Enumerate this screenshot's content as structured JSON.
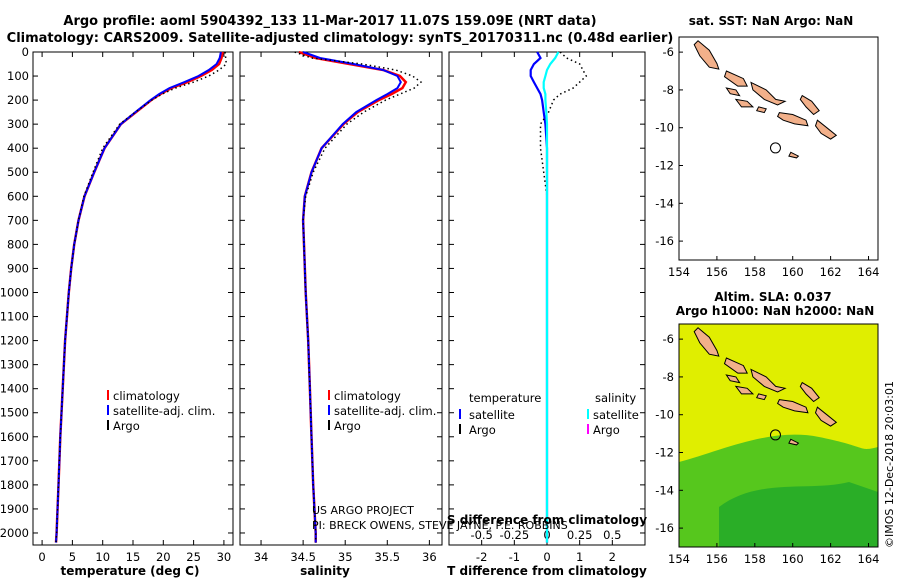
{
  "title_line1": "Argo profile: aoml 5904392_133 11-Mar-2017 11.07S 159.09E (NRT data)",
  "title_line2": "Climatology: CARS2009. Satellite-adjusted climatology: synTS_20170311.nc (0.48d earlier)",
  "colors": {
    "climatology": "#ff0000",
    "satellite": "#0000ff",
    "argo": "#000000",
    "sat_salinity": "#00ffff",
    "argo_salinity": "#ff00ff",
    "land": "#f2b08a",
    "sla_field": "#e0ee00",
    "sla_low": "#3dbf22"
  },
  "depth_axis": {
    "ylim": [
      0,
      2050
    ],
    "ticks": [
      0,
      100,
      200,
      300,
      400,
      500,
      600,
      700,
      800,
      900,
      1000,
      1100,
      1200,
      1300,
      1400,
      1500,
      1600,
      1700,
      1800,
      1900,
      2000
    ]
  },
  "chart_data": [
    {
      "type": "line",
      "id": "temperature",
      "xlabel": "temperature (deg C)",
      "xlim": [
        -1.5,
        31.5
      ],
      "xticks": [
        0,
        5,
        10,
        15,
        20,
        25,
        30
      ],
      "legend": [
        "climatology",
        "satellite-adj. clim.",
        "Argo"
      ],
      "depth": [
        0,
        25,
        50,
        75,
        100,
        125,
        150,
        175,
        200,
        250,
        300,
        400,
        500,
        600,
        700,
        800,
        900,
        1000,
        1200,
        1400,
        1600,
        1800,
        2000,
        2040
      ],
      "series": [
        {
          "name": "climatology",
          "values": [
            29.8,
            29.6,
            29.2,
            28.0,
            26.2,
            24.0,
            21.3,
            19.5,
            18.0,
            15.5,
            13.0,
            10.3,
            8.6,
            7.0,
            6.0,
            5.3,
            4.8,
            4.4,
            3.8,
            3.4,
            3.0,
            2.7,
            2.4,
            2.3
          ]
        },
        {
          "name": "satellite-adj. clim.",
          "values": [
            29.5,
            29.3,
            28.8,
            27.5,
            25.8,
            23.5,
            21.0,
            19.3,
            17.9,
            15.4,
            13.0,
            10.3,
            8.6,
            7.0,
            6.0,
            5.3,
            4.8,
            4.4,
            3.8,
            3.4,
            3.0,
            2.7,
            2.4,
            2.3
          ]
        },
        {
          "name": "Argo",
          "values": [
            30.2,
            30.3,
            30.4,
            29.2,
            27.5,
            25.0,
            22.0,
            19.8,
            18.1,
            15.4,
            12.8,
            10.0,
            8.4,
            6.9,
            6.0,
            5.3,
            4.8,
            4.4,
            3.8,
            3.4,
            3.0,
            2.7,
            2.4,
            2.3
          ]
        }
      ]
    },
    {
      "type": "line",
      "id": "salinity",
      "xlabel": "salinity",
      "xlim": [
        33.75,
        36.15
      ],
      "xticks": [
        34,
        34.5,
        35,
        35.5,
        36
      ],
      "legend": [
        "climatology",
        "satellite-adj. clim.",
        "Argo"
      ],
      "depth": [
        0,
        25,
        50,
        75,
        100,
        125,
        150,
        175,
        200,
        250,
        300,
        400,
        500,
        600,
        700,
        800,
        1000,
        1200,
        1400,
        1600,
        1800,
        2000,
        2040
      ],
      "series": [
        {
          "name": "climatology",
          "values": [
            34.45,
            34.65,
            35.05,
            35.45,
            35.65,
            35.72,
            35.68,
            35.55,
            35.4,
            35.15,
            34.98,
            34.72,
            34.6,
            34.52,
            34.5,
            34.51,
            34.53,
            34.56,
            34.58,
            34.6,
            34.62,
            34.65,
            34.65
          ]
        },
        {
          "name": "satellite-adj. clim.",
          "values": [
            34.5,
            34.7,
            35.1,
            35.45,
            35.62,
            35.66,
            35.62,
            35.5,
            35.37,
            35.13,
            34.97,
            34.72,
            34.6,
            34.52,
            34.5,
            34.51,
            34.53,
            34.56,
            34.58,
            34.6,
            34.62,
            34.65,
            34.65
          ]
        },
        {
          "name": "Argo",
          "values": [
            34.4,
            34.6,
            35.2,
            35.6,
            35.8,
            35.9,
            35.82,
            35.65,
            35.48,
            35.22,
            35.02,
            34.76,
            34.62,
            34.53,
            34.5,
            34.51,
            34.53,
            34.56,
            34.58,
            34.6,
            34.62,
            34.65,
            34.65
          ]
        }
      ],
      "credit_line1": "US ARGO PROJECT",
      "credit_line2": "PI: BRECK OWENS, STEVE JAYNE, P.E. ROBBINS"
    },
    {
      "type": "line",
      "id": "difference",
      "xlabel": "T difference from climatology",
      "xlim": [
        -3,
        3
      ],
      "xticks": [
        -2,
        -1,
        0,
        1,
        2
      ],
      "s_label": "S difference from climatology",
      "s_ticks": [
        {
          "label": "-0.5",
          "t": -2
        },
        {
          "label": "-0.25",
          "t": -1
        },
        {
          "label": "0",
          "t": 0
        },
        {
          "label": "0.25",
          "t": 1
        },
        {
          "label": "0.5",
          "t": 2
        }
      ],
      "legend_left_title": "temperature",
      "legend_right_title": "salinity",
      "legend_left": [
        "satellite",
        "Argo"
      ],
      "legend_right": [
        "satellite",
        "Argo"
      ],
      "depth": [
        0,
        25,
        50,
        75,
        100,
        125,
        150,
        175,
        200,
        250,
        300,
        400,
        500,
        600,
        800,
        1000,
        1200,
        1500,
        1800,
        2040
      ],
      "series": [
        {
          "name": "temperature satellite",
          "values": [
            -0.3,
            -0.2,
            -0.4,
            -0.5,
            -0.5,
            -0.4,
            -0.3,
            -0.2,
            -0.15,
            -0.1,
            -0.05,
            0,
            0,
            0,
            0,
            0,
            0,
            0,
            0,
            0
          ]
        },
        {
          "name": "temperature Argo",
          "values": [
            0.4,
            0.6,
            1.0,
            1.1,
            1.2,
            1.0,
            0.8,
            0.4,
            0.2,
            0.05,
            -0.2,
            -0.2,
            -0.1,
            0,
            0,
            0,
            0,
            0,
            0,
            0
          ]
        },
        {
          "name": "salinity satellite",
          "values": [
            0.35,
            0.25,
            0.1,
            0.0,
            -0.05,
            -0.1,
            -0.1,
            -0.05,
            -0.05,
            -0.02,
            0,
            0,
            0,
            0,
            0,
            0,
            0,
            0,
            0,
            0
          ]
        }
      ]
    },
    {
      "type": "map",
      "id": "sst_map",
      "title": "sat. SST: NaN Argo: NaN",
      "xlim": [
        154,
        164.5
      ],
      "ylim": [
        -17,
        -5.2
      ],
      "xticks": [
        154,
        156,
        158,
        160,
        162,
        164
      ],
      "yticks": [
        -6,
        -8,
        -10,
        -12,
        -14,
        -16
      ],
      "marker": {
        "lon": 159.09,
        "lat": -11.07
      }
    },
    {
      "type": "map",
      "id": "sla_map",
      "title_line1": "Altim. SLA: 0.037",
      "title_line2": "Argo h1000: NaN h2000: NaN",
      "xlim": [
        154,
        164.5
      ],
      "ylim": [
        -17,
        -5.2
      ],
      "xticks": [
        154,
        156,
        158,
        160,
        162,
        164
      ],
      "yticks": [
        -6,
        -8,
        -10,
        -12,
        -14,
        -16
      ],
      "marker": {
        "lon": 159.09,
        "lat": -11.07
      }
    }
  ],
  "footer_stamp": "©IMOS 12-Dec-2018 20:03:01"
}
